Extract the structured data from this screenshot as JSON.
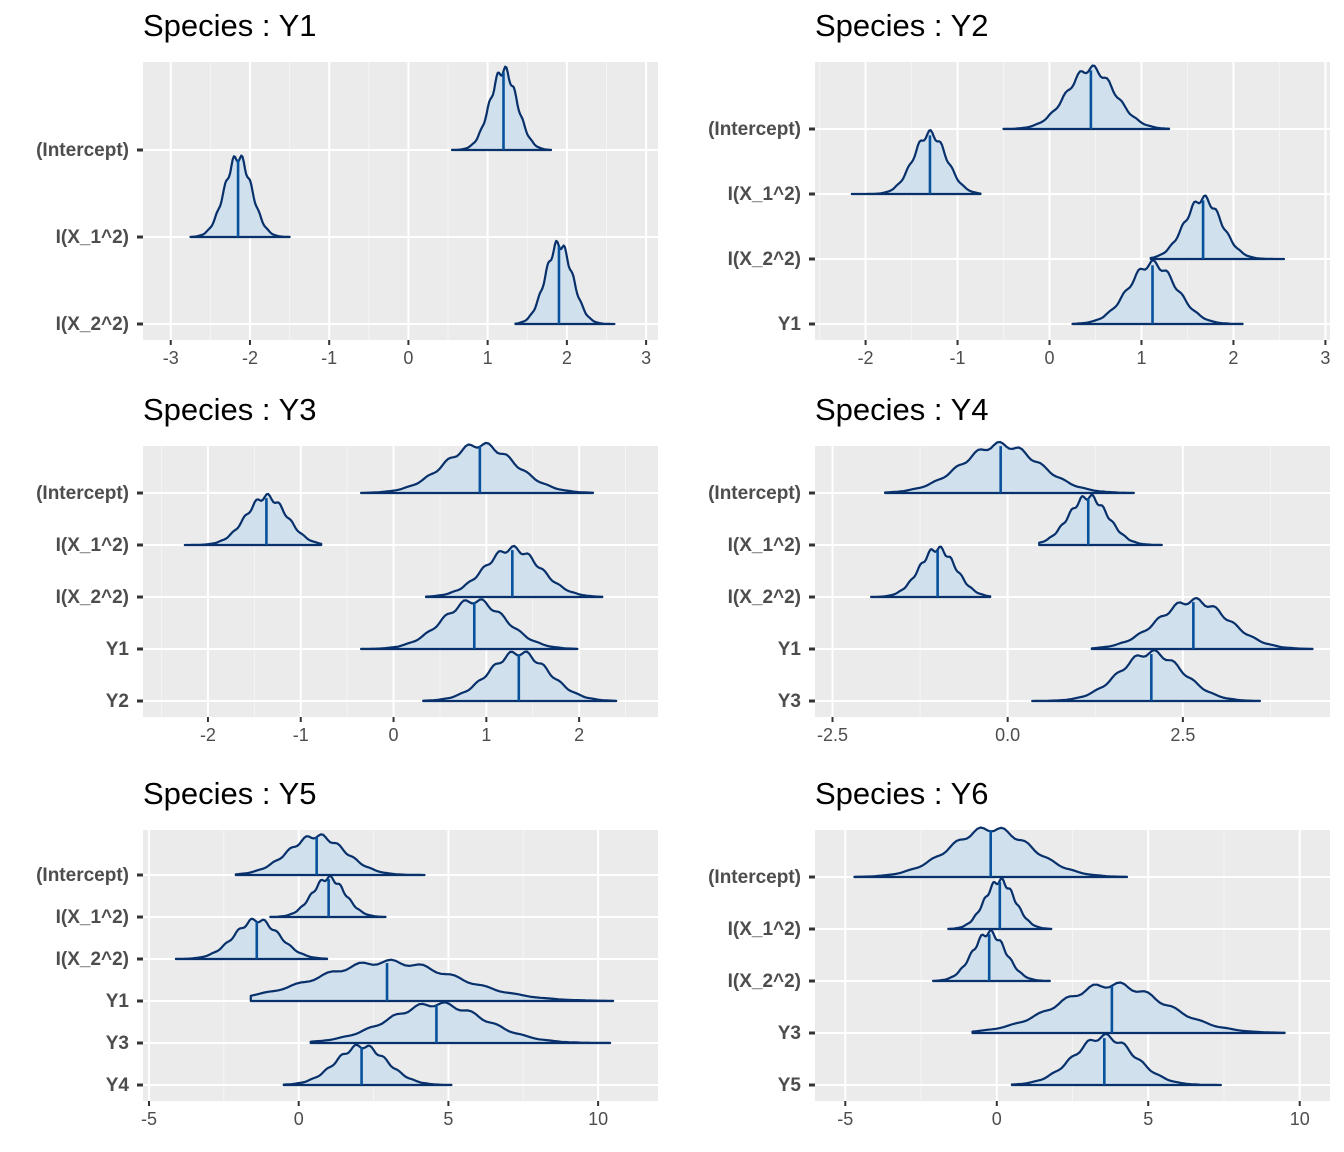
{
  "chart_data": [
    {
      "type": "ridgeline",
      "title": "Species : Y1",
      "categories": [
        "(Intercept)",
        "I(X_1^2)",
        "I(X_2^2)"
      ],
      "xlim": [
        -3.35,
        3.15
      ],
      "xticks": [
        -3,
        -2,
        -1,
        0,
        1,
        2,
        3
      ],
      "xtick_labels": [
        "-3",
        "-2",
        "-1",
        "0",
        "1",
        "2",
        "3"
      ],
      "series": [
        {
          "median": 1.2,
          "min": 0.55,
          "max": 1.8,
          "sd": 0.17
        },
        {
          "median": -2.15,
          "min": -2.75,
          "max": -1.5,
          "sd": 0.17
        },
        {
          "median": 1.9,
          "min": 1.35,
          "max": 2.6,
          "sd": 0.17
        }
      ]
    },
    {
      "type": "ridgeline",
      "title": "Species : Y2",
      "categories": [
        "(Intercept)",
        "I(X_1^2)",
        "I(X_2^2)",
        "Y1"
      ],
      "xlim": [
        -2.55,
        3.05
      ],
      "xticks": [
        -2,
        -1,
        0,
        1,
        2,
        3
      ],
      "xtick_labels": [
        "-2",
        "-1",
        "0",
        "1",
        "2",
        "3"
      ],
      "series": [
        {
          "median": 0.45,
          "min": -0.5,
          "max": 1.3,
          "sd": 0.26
        },
        {
          "median": -1.3,
          "min": -2.15,
          "max": -0.75,
          "sd": 0.18
        },
        {
          "median": 1.67,
          "min": 1.1,
          "max": 2.55,
          "sd": 0.2
        },
        {
          "median": 1.12,
          "min": 0.25,
          "max": 2.1,
          "sd": 0.26
        }
      ]
    },
    {
      "type": "ridgeline",
      "title": "Species : Y3",
      "categories": [
        "(Intercept)",
        "I(X_1^2)",
        "I(X_2^2)",
        "Y1",
        "Y2"
      ],
      "xlim": [
        -2.7,
        2.85
      ],
      "xticks": [
        -2,
        -1,
        0,
        1,
        2
      ],
      "xtick_labels": [
        "-2",
        "-1",
        "0",
        "1",
        "2"
      ],
      "series": [
        {
          "median": 0.93,
          "min": -0.35,
          "max": 2.15,
          "sd": 0.38
        },
        {
          "median": -1.37,
          "min": -2.25,
          "max": -0.78,
          "sd": 0.22
        },
        {
          "median": 1.28,
          "min": 0.35,
          "max": 2.25,
          "sd": 0.3
        },
        {
          "median": 0.87,
          "min": -0.35,
          "max": 1.98,
          "sd": 0.34
        },
        {
          "median": 1.35,
          "min": 0.32,
          "max": 2.4,
          "sd": 0.32
        }
      ]
    },
    {
      "type": "ridgeline",
      "title": "Species : Y4",
      "categories": [
        "(Intercept)",
        "I(X_1^2)",
        "I(X_2^2)",
        "Y1",
        "Y3"
      ],
      "xlim": [
        -2.75,
        4.6
      ],
      "xticks": [
        -2.5,
        0,
        2.5
      ],
      "xtick_labels": [
        "-2.5",
        "0.0",
        "2.5"
      ],
      "series": [
        {
          "median": -0.1,
          "min": -1.75,
          "max": 1.8,
          "sd": 0.55
        },
        {
          "median": 1.15,
          "min": 0.45,
          "max": 2.2,
          "sd": 0.28
        },
        {
          "median": -1.0,
          "min": -1.95,
          "max": -0.25,
          "sd": 0.26
        },
        {
          "median": 2.65,
          "min": 1.2,
          "max": 4.35,
          "sd": 0.5
        },
        {
          "median": 2.05,
          "min": 0.35,
          "max": 3.6,
          "sd": 0.45
        }
      ]
    },
    {
      "type": "ridgeline",
      "title": "Species : Y5",
      "categories": [
        "(Intercept)",
        "I(X_1^2)",
        "I(X_2^2)",
        "Y1",
        "Y3",
        "Y4"
      ],
      "xlim": [
        -5.2,
        12.0
      ],
      "xticks": [
        -5,
        0,
        5,
        10
      ],
      "xtick_labels": [
        "-5",
        "0",
        "5",
        "10"
      ],
      "series": [
        {
          "median": 0.6,
          "min": -2.1,
          "max": 4.2,
          "sd": 0.95
        },
        {
          "median": 1.0,
          "min": -0.95,
          "max": 2.9,
          "sd": 0.55
        },
        {
          "median": -1.4,
          "min": -4.1,
          "max": 0.95,
          "sd": 0.75
        },
        {
          "median": 2.95,
          "min": -1.6,
          "max": 10.5,
          "sd": 2.3
        },
        {
          "median": 4.6,
          "min": 0.4,
          "max": 10.4,
          "sd": 1.6
        },
        {
          "median": 2.1,
          "min": -0.5,
          "max": 5.1,
          "sd": 0.85
        }
      ]
    },
    {
      "type": "ridgeline",
      "title": "Species : Y6",
      "categories": [
        "(Intercept)",
        "I(X_1^2)",
        "I(X_2^2)",
        "Y3",
        "Y5"
      ],
      "xlim": [
        -6.0,
        11.0
      ],
      "xticks": [
        -5,
        0,
        5,
        10
      ],
      "xtick_labels": [
        "-5",
        "0",
        "5",
        "10"
      ],
      "series": [
        {
          "median": -0.2,
          "min": -4.7,
          "max": 4.3,
          "sd": 1.35
        },
        {
          "median": 0.1,
          "min": -1.6,
          "max": 1.8,
          "sd": 0.5
        },
        {
          "median": -0.25,
          "min": -2.1,
          "max": 1.75,
          "sd": 0.55
        },
        {
          "median": 3.8,
          "min": -0.8,
          "max": 9.5,
          "sd": 1.75
        },
        {
          "median": 3.55,
          "min": 0.5,
          "max": 7.4,
          "sd": 1.0
        }
      ]
    }
  ]
}
